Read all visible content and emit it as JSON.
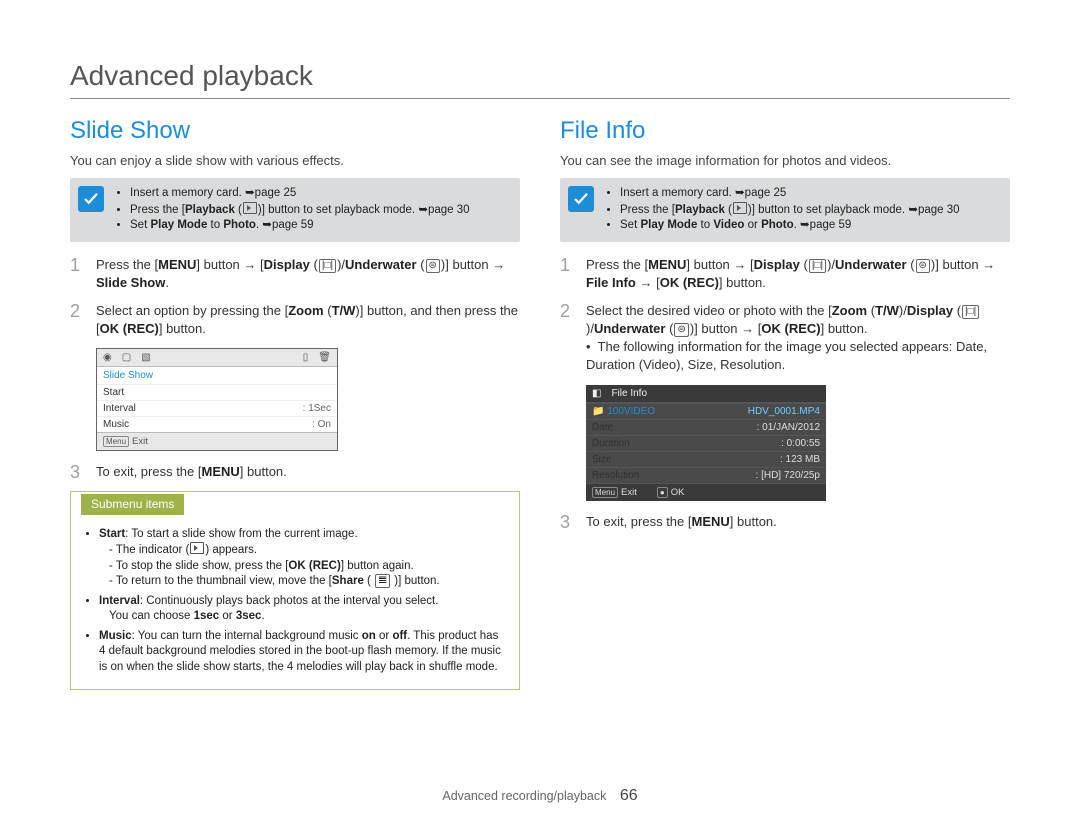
{
  "page_title": "Advanced playback",
  "footer": {
    "label": "Advanced recording/playback",
    "page": "66"
  },
  "colors": {
    "accent": "#1e8dd8",
    "submenu_border": "#b9c47a",
    "submenu_head_bg": "#9fb24a",
    "step_num": "#9aa0a6",
    "card_bg": "#dadbdc"
  },
  "left": {
    "heading": "Slide Show",
    "intro": "You can enjoy a slide show with various effects.",
    "card_items": [
      {
        "plain": "Insert a memory card. ➥page 25"
      },
      {
        "html": "Press the [<b>Playback</b> (<span class='ico-sm'></span>)] button to set playback mode. ➥page 30"
      },
      {
        "html": "Set <b>Play Mode</b> to <b>Photo</b>. ➥page 59"
      }
    ],
    "steps": [
      {
        "n": "1",
        "html": "Press the [<b>MENU</b>] button <span class='arrow'>→</span> [<b>Display</b> (<span class='chip'>|□|</span>)/<b>Underwater</b> (<span class='chip'>⊜</span>)] button <span class='arrow'>→</span> <b>Slide Show</b>."
      },
      {
        "n": "2",
        "html": "Select an option by pressing the [<b>Zoom</b> (<b>T/W</b>)] button, and then press the [<b>OK (REC)</b>] button."
      },
      {
        "n": "3",
        "html": "To exit, press the [<b>MENU</b>] button."
      }
    ],
    "screen": {
      "type": "menu",
      "title": "Slide Show",
      "rows": [
        [
          "Start",
          ""
        ],
        [
          "Interval",
          ": 1Sec"
        ],
        [
          "Music",
          ": On"
        ]
      ],
      "foot": [
        {
          "tag": "Menu",
          "text": "Exit"
        }
      ]
    },
    "submenu": {
      "head": "Submenu items",
      "items": [
        {
          "html": "<b>Start</b>: To start a slide show from the current image.<span class='sub-indent'>- The indicator (<span class='ico-sm'></span>) appears.</span><span class='sub-indent'>- To stop the slide show, press the [<b>OK (REC)</b>] button again.</span><span class='sub-indent'>- To return to the thumbnail view, move the [<b>Share</b> ( <span class='chip'>𝌆</span> )] button.</span>"
        },
        {
          "html": "<b>Interval</b>: Continuously plays back photos at the interval you select.<span class='sub-indent'>You can choose <b>1sec</b> or <b>3sec</b>.</span>"
        },
        {
          "html": "<b>Music</b>: You can turn the internal background music <b>on</b> or <b>off</b>. This product has 4 default background melodies stored in the boot-up flash memory. If the music is on when the slide show starts, the 4 melodies will play back in shuffle mode."
        }
      ]
    }
  },
  "right": {
    "heading": "File Info",
    "intro": "You can see the image information for photos and videos.",
    "card_items": [
      {
        "plain": "Insert a memory card. ➥page 25"
      },
      {
        "html": "Press the [<b>Playback</b> (<span class='ico-sm'></span>)] button to set playback mode. ➥page 30"
      },
      {
        "html": "Set <b>Play Mode</b> to <b>Video</b> or <b>Photo</b>. ➥page 59"
      }
    ],
    "steps": [
      {
        "n": "1",
        "html": "Press the [<b>MENU</b>] button <span class='arrow'>→</span> [<b>Display</b> (<span class='chip'>|□|</span>)/<b>Underwater</b> (<span class='chip'>⊜</span>)] button <span class='arrow'>→</span> <b>File Info</b> <span class='arrow'>→</span> [<b>OK (REC)</b>] button."
      },
      {
        "n": "2",
        "html": "Select the desired video or photo with the [<b>Zoom</b> (<b>T/W</b>)/<b>Display</b> (<span class='chip'>|□|</span>)/<b>Underwater</b> (<span class='chip'>⊜</span>)] button <span class='arrow'>→</span> [<b>OK (REC)</b>] button.<br>•&nbsp; The following information for the image you selected appears: Date, Duration (Video), Size, Resolution."
      },
      {
        "n": "3",
        "html": "To exit, press the [<b>MENU</b>] button."
      }
    ],
    "screen": {
      "type": "fileinfo",
      "title": "File Info",
      "folder": "100VIDEO",
      "filename": "HDV_0001.MP4",
      "rows": [
        [
          "Date",
          ": 01/JAN/2012"
        ],
        [
          "Duration",
          ": 0:00:55"
        ],
        [
          "Size",
          ": 123 MB"
        ],
        [
          "Resolution",
          ": [HD] 720/25p"
        ]
      ],
      "foot": [
        {
          "tag": "Menu",
          "text": "Exit"
        },
        {
          "tag": "●",
          "text": "OK"
        }
      ]
    }
  }
}
